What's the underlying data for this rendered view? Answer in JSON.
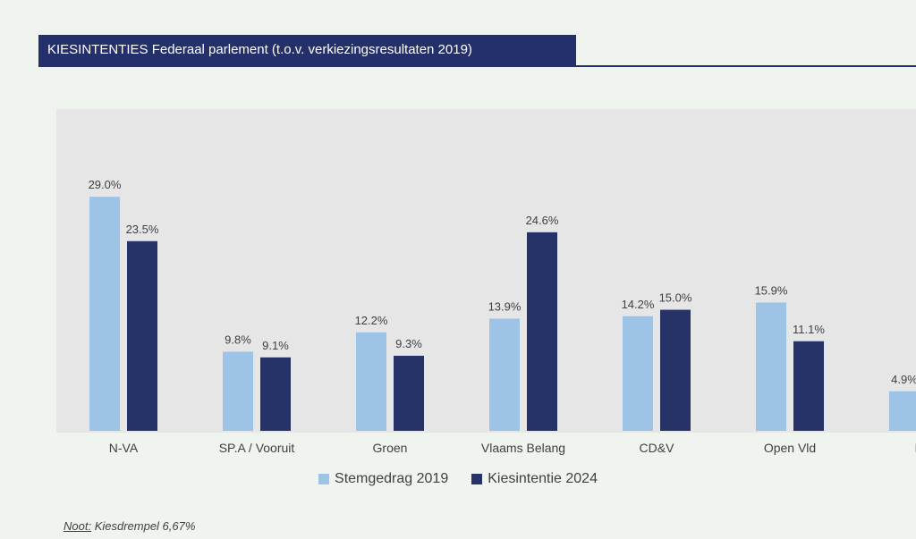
{
  "header": {
    "title": "KIESINTENTIES Federaal parlement (t.o.v. verkiezingsresultaten 2019)"
  },
  "colors": {
    "series1": "#9dc3e6",
    "series2": "#263369",
    "title_bg": "#24306a",
    "plot_bg": "#e6e6e6"
  },
  "chart_data": {
    "type": "bar",
    "title": "KIESINTENTIES Federaal parlement (t.o.v. verkiezingsresultaten 2019)",
    "categories": [
      "N-VA",
      "SP.A / Vooruit",
      "Groen",
      "Vlaams Belang",
      "CD&V",
      "Open Vld",
      "PVDA"
    ],
    "category_labels_visible": [
      "N-VA",
      "SP.A / Vooruit",
      "Groen",
      "Vlaams Belang",
      "CD&V",
      "Open Vld",
      "PV"
    ],
    "series": [
      {
        "name": "Stemgedrag 2019",
        "values": [
          29.0,
          9.8,
          12.2,
          13.9,
          14.2,
          15.9,
          4.9
        ],
        "labels": [
          "29.0%",
          "9.8%",
          "12.2%",
          "13.9%",
          "14.2%",
          "15.9%",
          "4.9%"
        ]
      },
      {
        "name": "Kiesintentie 2024",
        "values": [
          23.5,
          9.1,
          9.3,
          24.6,
          15.0,
          11.1,
          null
        ],
        "labels": [
          "23.5%",
          "9.1%",
          "9.3%",
          "24.6%",
          "15.0%",
          "11.1%",
          null
        ]
      }
    ],
    "xlabel": "",
    "ylabel": "",
    "ylim": [
      0,
      34.3
    ],
    "grid": false,
    "legend": "bottom-center"
  },
  "legend": {
    "series1": "Stemgedrag 2019",
    "series2": "Kiesintentie 2024"
  },
  "note": {
    "label": "Noot:",
    "text": " Kiesdrempel 6,67%"
  }
}
